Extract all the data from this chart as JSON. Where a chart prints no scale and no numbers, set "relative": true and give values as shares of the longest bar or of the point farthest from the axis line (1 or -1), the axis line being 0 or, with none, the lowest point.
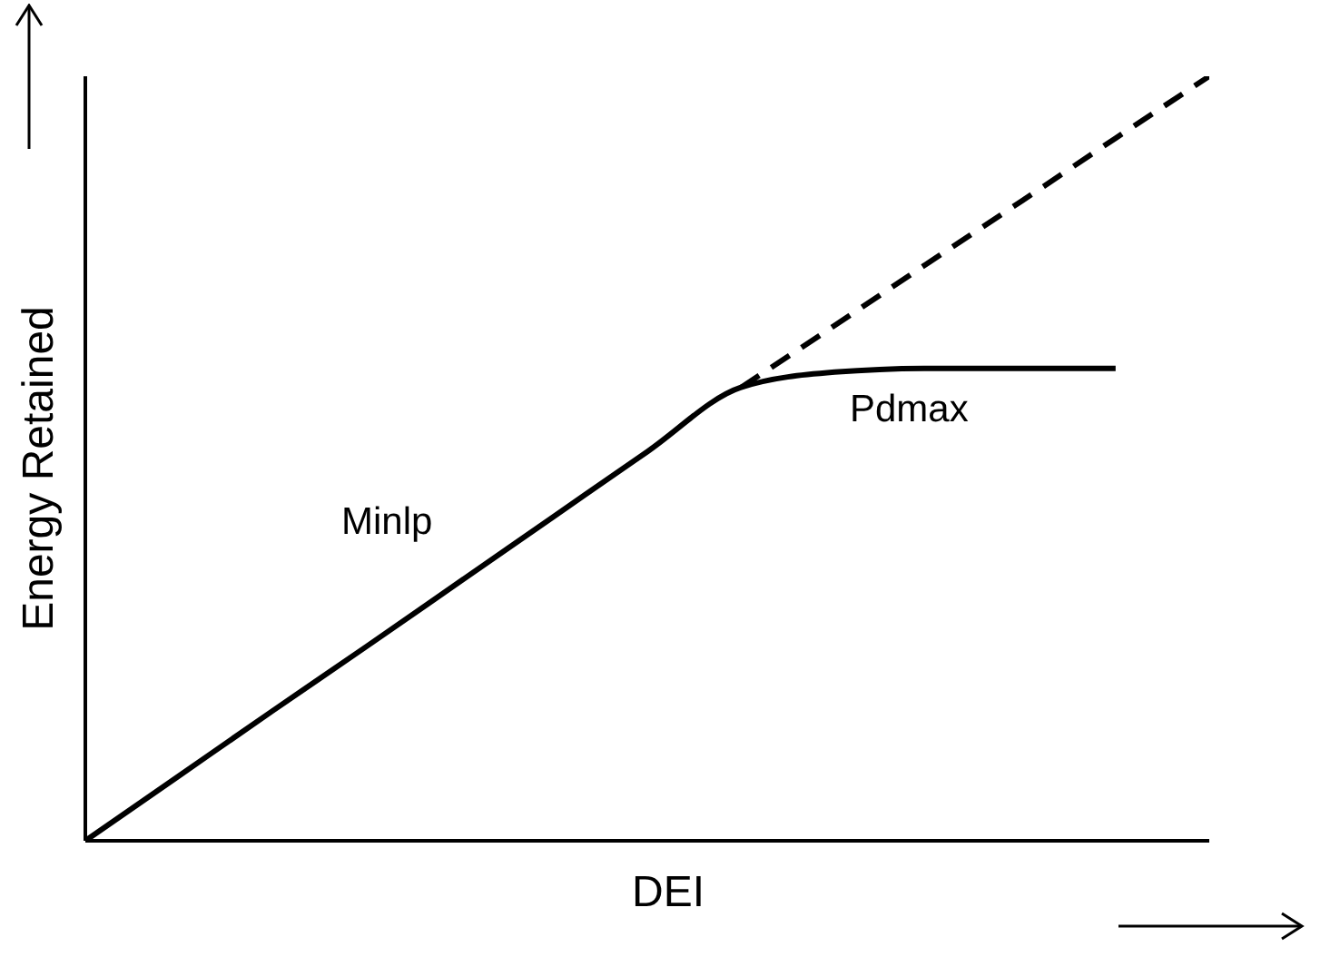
{
  "chart_data": {
    "type": "line",
    "relative": true,
    "xlabel": "DEI",
    "ylabel": "Energy Retained",
    "categories": [
      null,
      null,
      null,
      null,
      null,
      null,
      null,
      null,
      null,
      null,
      null,
      null,
      null
    ],
    "series": [
      {
        "color": "#000000",
        "line_style": "solid",
        "values": [
          0,
          0.085,
          0.17,
          0.254,
          0.339,
          0.424,
          0.509,
          0.593,
          0.613,
          0.618,
          0.618,
          0.618,
          null
        ]
      },
      {
        "color": "#000000",
        "line_style": "dashed",
        "values": [
          null,
          null,
          null,
          null,
          null,
          null,
          null,
          0.593,
          0.674,
          0.756,
          0.837,
          0.919,
          1
        ]
      }
    ],
    "annotations": [
      "Minlp",
      "Pdmax"
    ],
    "marker": "none",
    "grid": false
  }
}
